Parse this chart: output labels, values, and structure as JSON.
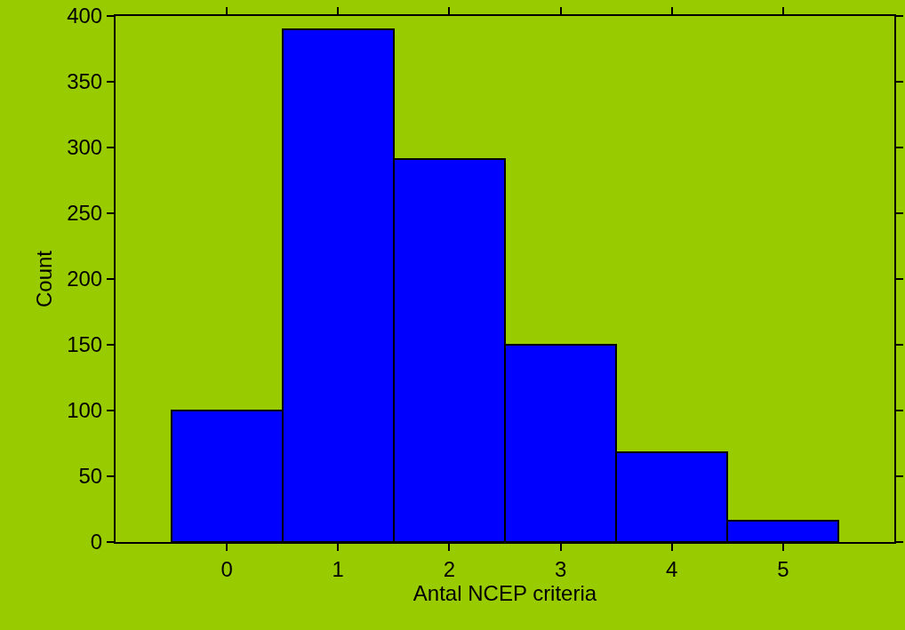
{
  "chart_data": {
    "type": "histogram",
    "xlabel": "Antal NCEP criteria",
    "ylabel": "Count",
    "bins": [
      -0.5,
      0.5,
      1.5,
      2.5,
      3.5,
      4.5,
      5.5
    ],
    "values": [
      100,
      390,
      291,
      150,
      68,
      16
    ],
    "color": "#0000ff",
    "xlim": [
      -1,
      6
    ],
    "xticks": [
      0,
      1,
      2,
      3,
      4,
      5
    ],
    "ylim": [
      0,
      400
    ],
    "yticks": [
      0,
      50,
      100,
      150,
      200,
      250,
      300,
      350,
      400
    ],
    "grid": false
  }
}
